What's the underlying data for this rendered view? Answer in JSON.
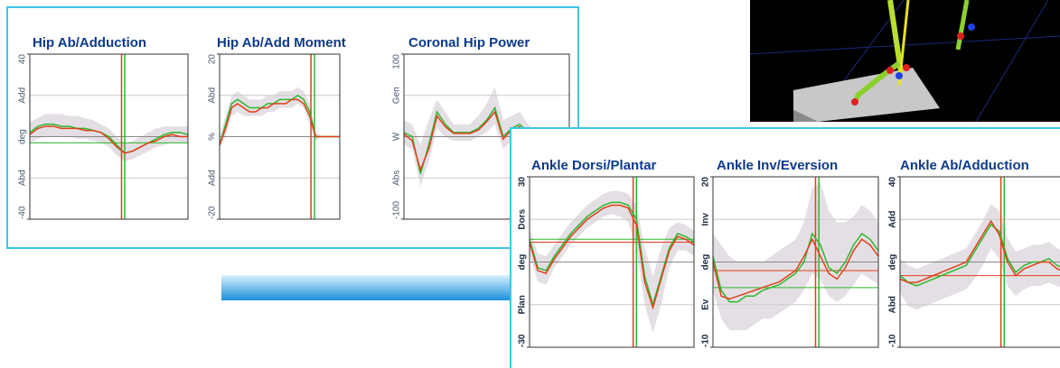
{
  "chart_data": [
    {
      "type": "line",
      "title": "Hip Ab/Adduction",
      "xlim": [
        0,
        100
      ],
      "ylim": [
        -40,
        40
      ],
      "grid": true,
      "yticks": [
        -40,
        {
          "value": -20,
          "label": "Abd"
        },
        {
          "value": 0,
          "label": "deg"
        },
        {
          "value": 20,
          "label": "Add"
        },
        40
      ],
      "band": {
        "color": "#e4dfe4",
        "upper": [
          7,
          9,
          11,
          11,
          11,
          10,
          10,
          9,
          8,
          6,
          4,
          0,
          -3,
          -2,
          0,
          2,
          4,
          5,
          5,
          5,
          5
        ],
        "lower": [
          -3,
          -1,
          0,
          0,
          0,
          0,
          -1,
          -1,
          -2,
          -3,
          -5,
          -9,
          -12,
          -11,
          -9,
          -7,
          -5,
          -4,
          -3,
          -3,
          -3
        ]
      },
      "series": [
        {
          "color": "#2db82d",
          "values": [
            2,
            5,
            6,
            6,
            5,
            5,
            4,
            4,
            3,
            2,
            0,
            -4,
            -8,
            -7,
            -5,
            -3,
            -1,
            1,
            2,
            2,
            1
          ]
        },
        {
          "color": "#e0401a",
          "values": [
            1,
            4,
            5,
            5,
            4,
            4,
            4,
            3,
            3,
            2,
            -1,
            -5,
            -8,
            -7,
            -5,
            -3,
            -2,
            0,
            1,
            0,
            0
          ]
        }
      ],
      "reference_lines": [
        {
          "color": "#2db82d",
          "value": -3
        }
      ],
      "events": [
        {
          "color": "#e0401a",
          "value": 58
        },
        {
          "color": "#2db82d",
          "value": 60
        }
      ]
    },
    {
      "type": "line",
      "title": "Hip Ab/Add Moment",
      "xlim": [
        0,
        100
      ],
      "ylim": [
        -20,
        20
      ],
      "grid": true,
      "yticks": [
        -20,
        {
          "value": -10,
          "label": "Add"
        },
        {
          "value": 0,
          "label": "%"
        },
        {
          "value": 10,
          "label": "Abd"
        },
        20
      ],
      "band": {
        "color": "#e4dfe4",
        "upper": [
          0,
          5,
          10,
          11,
          10,
          9,
          9,
          9,
          10,
          10,
          11,
          11,
          11,
          12,
          11,
          8,
          1,
          0,
          0,
          0,
          0
        ],
        "lower": [
          -3,
          0,
          5,
          6,
          5,
          5,
          5,
          5,
          6,
          6,
          7,
          7,
          7,
          8,
          7,
          3,
          -1,
          0,
          0,
          0,
          0
        ]
      },
      "series": [
        {
          "color": "#2db82d",
          "values": [
            -2,
            3,
            8,
            9,
            8,
            7,
            7,
            7,
            8,
            8,
            9,
            9,
            9,
            10,
            9,
            6,
            0,
            0,
            0,
            0,
            0
          ]
        },
        {
          "color": "#e0401a",
          "values": [
            -2,
            2,
            7,
            8,
            7,
            6,
            6,
            7,
            7,
            8,
            8,
            8,
            9,
            9,
            8,
            5,
            0,
            0,
            0,
            0,
            0
          ]
        }
      ],
      "events": [
        {
          "color": "#e0401a",
          "value": 76
        },
        {
          "color": "#2db82d",
          "value": 79
        }
      ]
    },
    {
      "type": "line",
      "title": "Coronal Hip Power",
      "xlim": [
        0,
        100
      ],
      "ylim": [
        -100,
        100
      ],
      "grid": true,
      "yticks": [
        -100,
        {
          "value": -50,
          "label": "Abs"
        },
        {
          "value": 0,
          "label": "W"
        },
        {
          "value": 50,
          "label": "Gen"
        },
        100
      ],
      "band": {
        "color": "#e4dfe4",
        "upper": [
          20,
          15,
          -10,
          20,
          45,
          30,
          15,
          15,
          15,
          25,
          40,
          60,
          20,
          25,
          30,
          15,
          5,
          5,
          5,
          5,
          5
        ],
        "lower": [
          -10,
          -15,
          -60,
          -30,
          10,
          0,
          -5,
          -5,
          -5,
          0,
          5,
          15,
          -15,
          -5,
          0,
          -5,
          -5,
          -5,
          -5,
          -5,
          -5
        ]
      },
      "series": [
        {
          "color": "#2db82d",
          "values": [
            5,
            0,
            -45,
            -10,
            30,
            15,
            5,
            5,
            5,
            10,
            20,
            35,
            0,
            10,
            15,
            5,
            0,
            0,
            0,
            0,
            0
          ]
        },
        {
          "color": "#e0401a",
          "values": [
            3,
            -5,
            -40,
            -15,
            25,
            12,
            4,
            4,
            4,
            8,
            18,
            30,
            -3,
            8,
            12,
            3,
            0,
            0,
            0,
            0,
            0
          ]
        }
      ]
    },
    {
      "type": "line",
      "title": "Ankle Dorsi/Plantar",
      "xlim": [
        0,
        100
      ],
      "ylim": [
        -30,
        30
      ],
      "grid": true,
      "yticks": [
        -30,
        {
          "value": -15,
          "label": "Plan"
        },
        {
          "value": 0,
          "label": "deg"
        },
        {
          "value": 15,
          "label": "Dors"
        },
        30
      ],
      "band": {
        "color": "#e4dfe4",
        "upper": [
          12,
          3,
          2,
          6,
          10,
          14,
          17,
          20,
          22,
          24,
          25,
          25,
          24,
          20,
          5,
          -5,
          5,
          12,
          14,
          13,
          11
        ],
        "lower": [
          3,
          -7,
          -8,
          -2,
          2,
          6,
          9,
          12,
          14,
          16,
          17,
          16,
          14,
          5,
          -15,
          -25,
          -15,
          -2,
          4,
          4,
          2
        ]
      },
      "series": [
        {
          "color": "#2db82d",
          "values": [
            8,
            -2,
            -3,
            2,
            6,
            10,
            13,
            16,
            18,
            20,
            21,
            21,
            20,
            15,
            -5,
            -15,
            -5,
            5,
            10,
            9,
            7
          ]
        },
        {
          "color": "#e0401a",
          "values": [
            7,
            -3,
            -4,
            1,
            5,
            9,
            12,
            15,
            17,
            19,
            20,
            20,
            19,
            13,
            -7,
            -16,
            -6,
            4,
            9,
            8,
            6
          ]
        }
      ],
      "reference_lines": [
        {
          "color": "#e0401a",
          "value": 7
        },
        {
          "color": "#2db82d",
          "value": 8
        }
      ],
      "events": [
        {
          "color": "#e0401a",
          "value": 63
        },
        {
          "color": "#2db82d",
          "value": 65
        }
      ]
    },
    {
      "type": "line",
      "title": "Ankle Inv/Eversion",
      "xlim": [
        0,
        100
      ],
      "ylim": [
        -10,
        20
      ],
      "grid": true,
      "yticks": [
        -10,
        {
          "value": -2.5,
          "label": "Ev"
        },
        {
          "value": 5,
          "label": "deg"
        },
        {
          "value": 12.5,
          "label": "Inv"
        },
        20
      ],
      "band": {
        "color": "#e4dfe4",
        "upper": [
          10,
          8,
          6,
          5,
          5,
          5,
          5,
          6,
          7,
          8,
          9,
          12,
          18,
          19,
          14,
          12,
          12,
          13,
          15,
          14,
          12
        ],
        "lower": [
          0,
          -5,
          -7,
          -7,
          -7,
          -6,
          -5,
          -5,
          -4,
          -3,
          -2,
          0,
          3,
          2,
          -1,
          -2,
          -1,
          1,
          3,
          2,
          1
        ]
      },
      "series": [
        {
          "color": "#2db82d",
          "values": [
            6,
            0,
            -2,
            -2,
            -1,
            -1,
            0,
            0.5,
            1,
            2,
            3,
            5,
            10,
            8,
            4,
            3,
            5,
            8,
            10,
            9,
            7
          ]
        },
        {
          "color": "#e0401a",
          "values": [
            5,
            -1,
            -1.5,
            -1,
            -0.5,
            0,
            0.5,
            1,
            1.5,
            2.5,
            3.5,
            6,
            9,
            6,
            3,
            2,
            4,
            7,
            9,
            8,
            6
          ]
        }
      ],
      "reference_lines": [
        {
          "color": "#e0401a",
          "value": 3.5
        },
        {
          "color": "#2db82d",
          "value": 0.5
        }
      ],
      "events": [
        {
          "color": "#e0401a",
          "value": 62
        },
        {
          "color": "#2db82d",
          "value": 64
        }
      ]
    },
    {
      "type": "line",
      "title": "Ankle Ab/Adduction",
      "xlim": [
        0,
        100
      ],
      "ylim": [
        -10,
        40
      ],
      "grid": true,
      "yticks": [
        -10,
        {
          "value": 2.5,
          "label": "Abd"
        },
        {
          "value": 15,
          "label": "deg"
        },
        {
          "value": 27.5,
          "label": "Add"
        },
        40
      ],
      "band": {
        "color": "#e4dfe4",
        "upper": [
          16,
          14,
          13,
          14,
          15,
          16,
          17,
          18,
          19,
          23,
          27,
          32,
          30,
          22,
          18,
          19,
          20,
          20,
          21,
          19,
          18
        ],
        "lower": [
          6,
          2,
          1,
          2,
          3,
          4,
          5,
          6,
          7,
          10,
          14,
          19,
          16,
          8,
          5,
          7,
          8,
          8,
          9,
          8,
          7
        ]
      },
      "series": [
        {
          "color": "#2db82d",
          "values": [
            11,
            9,
            8,
            9,
            10,
            11,
            12,
            13,
            14,
            18,
            22,
            26,
            24,
            16,
            12,
            14,
            15,
            15,
            16,
            14,
            13
          ]
        },
        {
          "color": "#e0401a",
          "values": [
            10,
            9,
            9,
            10,
            11,
            12,
            13,
            14,
            15,
            19,
            23,
            27,
            23,
            15,
            11,
            13,
            14,
            15,
            15,
            13,
            12
          ]
        }
      ],
      "reference_lines": [
        {
          "color": "#e0401a",
          "value": 11
        }
      ],
      "events": [
        {
          "color": "#e0401a",
          "value": 61
        },
        {
          "color": "#2db82d",
          "value": 63
        }
      ]
    }
  ]
}
